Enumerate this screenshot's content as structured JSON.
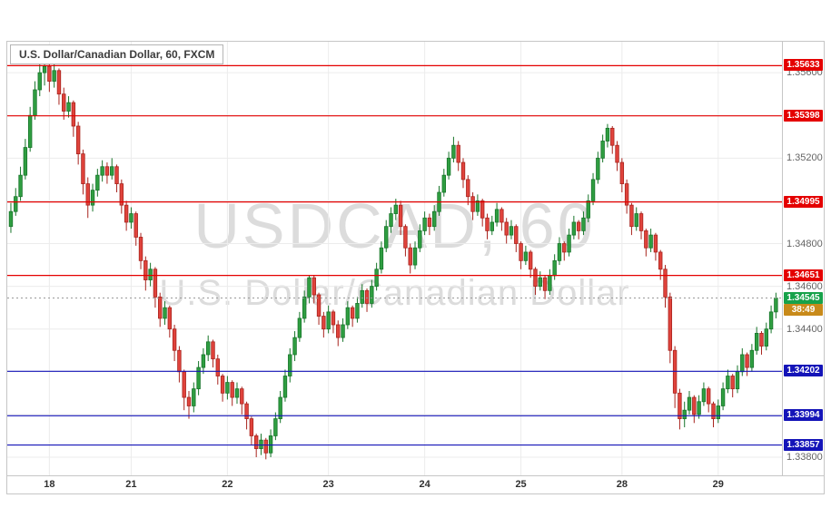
{
  "header": {
    "legend": "U.S. Dollar/Canadian Dollar, 60, FXCM"
  },
  "watermark": {
    "line1": "USDCAD, 60",
    "line2": "U.S. Dollar/Canadian Dollar"
  },
  "colors": {
    "up_fill": "#2f9e41",
    "up_border": "#17752a",
    "down_fill": "#e0433c",
    "down_border": "#a8241e",
    "resistance": "#e40000",
    "support": "#1414b8",
    "last_price": "#17a24a",
    "countdown": "#c88a1a",
    "grid": "#ececec",
    "axis_text": "#656565",
    "frame": "#c6c6c6",
    "last_price_line": "#999999"
  },
  "chart_data": {
    "type": "candlestick",
    "title": "U.S. Dollar/Canadian Dollar, 60, FXCM",
    "symbol": "USDCAD",
    "interval": "60",
    "exchange": "FXCM",
    "price_range": [
      1.33715,
      1.35745
    ],
    "grid_step": 0.002,
    "price_ticks": [
      "1.35600",
      "1.35400",
      "1.35200",
      "1.35000",
      "1.34800",
      "1.34600",
      "1.34400",
      "1.34200",
      "1.34000",
      "1.33800"
    ],
    "time_labels": [
      {
        "text": "18",
        "index": 8
      },
      {
        "text": "21",
        "index": 25
      },
      {
        "text": "22",
        "index": 45
      },
      {
        "text": "23",
        "index": 66
      },
      {
        "text": "24",
        "index": 86
      },
      {
        "text": "25",
        "index": 106
      },
      {
        "text": "28",
        "index": 127
      },
      {
        "text": "29",
        "index": 147
      }
    ],
    "resistance_levels": [
      1.35633,
      1.35398,
      1.34995,
      1.34651
    ],
    "support_levels": [
      1.34202,
      1.33994,
      1.33857
    ],
    "last_price": 1.34545,
    "last_price_label": "1.34545",
    "countdown": "38:49",
    "candles": [
      [
        1.3488,
        1.3499,
        1.3485,
        1.3495
      ],
      [
        1.3495,
        1.3506,
        1.3493,
        1.3502
      ],
      [
        1.3502,
        1.3516,
        1.35,
        1.3512
      ],
      [
        1.3512,
        1.3529,
        1.351,
        1.3525
      ],
      [
        1.3525,
        1.3544,
        1.3523,
        1.354
      ],
      [
        1.354,
        1.3556,
        1.3538,
        1.3552
      ],
      [
        1.3552,
        1.3564,
        1.3549,
        1.356
      ],
      [
        1.356,
        1.3566,
        1.3554,
        1.3563
      ],
      [
        1.3563,
        1.3565,
        1.3551,
        1.3556
      ],
      [
        1.3556,
        1.3564,
        1.3553,
        1.3561
      ],
      [
        1.3561,
        1.3562,
        1.3545,
        1.355
      ],
      [
        1.355,
        1.3553,
        1.3538,
        1.3542
      ],
      [
        1.3542,
        1.3549,
        1.3539,
        1.3546
      ],
      [
        1.3546,
        1.3547,
        1.353,
        1.3535
      ],
      [
        1.3535,
        1.3537,
        1.3517,
        1.3522
      ],
      [
        1.3522,
        1.3524,
        1.3503,
        1.3508
      ],
      [
        1.3508,
        1.3511,
        1.3492,
        1.3498
      ],
      [
        1.3498,
        1.3508,
        1.3495,
        1.3505
      ],
      [
        1.3505,
        1.3515,
        1.3502,
        1.3512
      ],
      [
        1.3512,
        1.3519,
        1.3509,
        1.3516
      ],
      [
        1.3516,
        1.3518,
        1.3508,
        1.3512
      ],
      [
        1.3512,
        1.352,
        1.351,
        1.3516
      ],
      [
        1.3516,
        1.3517,
        1.3504,
        1.3508
      ],
      [
        1.3508,
        1.351,
        1.3494,
        1.3498
      ],
      [
        1.3498,
        1.35,
        1.3486,
        1.349
      ],
      [
        1.349,
        1.3497,
        1.3487,
        1.3494
      ],
      [
        1.3494,
        1.3495,
        1.3479,
        1.3483
      ],
      [
        1.3483,
        1.3485,
        1.3468,
        1.3472
      ],
      [
        1.3472,
        1.3474,
        1.3458,
        1.3463
      ],
      [
        1.3463,
        1.3471,
        1.346,
        1.3468
      ],
      [
        1.3468,
        1.3469,
        1.345,
        1.3455
      ],
      [
        1.3455,
        1.3457,
        1.3441,
        1.3445
      ],
      [
        1.3445,
        1.3453,
        1.3442,
        1.345
      ],
      [
        1.345,
        1.3451,
        1.3436,
        1.344
      ],
      [
        1.344,
        1.3442,
        1.3425,
        1.343
      ],
      [
        1.343,
        1.3432,
        1.3415,
        1.342
      ],
      [
        1.342,
        1.3421,
        1.3402,
        1.3408
      ],
      [
        1.3408,
        1.3411,
        1.3398,
        1.3404
      ],
      [
        1.3404,
        1.3415,
        1.3401,
        1.3412
      ],
      [
        1.3412,
        1.3425,
        1.3409,
        1.3422
      ],
      [
        1.3422,
        1.3431,
        1.3419,
        1.3428
      ],
      [
        1.3428,
        1.3437,
        1.3425,
        1.3434
      ],
      [
        1.3434,
        1.3435,
        1.3422,
        1.3426
      ],
      [
        1.3426,
        1.3428,
        1.3414,
        1.3418
      ],
      [
        1.3418,
        1.3419,
        1.3406,
        1.341
      ],
      [
        1.341,
        1.3418,
        1.3407,
        1.3415
      ],
      [
        1.3415,
        1.3416,
        1.3404,
        1.3408
      ],
      [
        1.3408,
        1.3415,
        1.3405,
        1.3412
      ],
      [
        1.3412,
        1.3413,
        1.34,
        1.3405
      ],
      [
        1.3405,
        1.3406,
        1.3393,
        1.3398
      ],
      [
        1.3398,
        1.3399,
        1.3386,
        1.339
      ],
      [
        1.339,
        1.3391,
        1.338,
        1.3384
      ],
      [
        1.3384,
        1.3391,
        1.3381,
        1.3388
      ],
      [
        1.3388,
        1.3389,
        1.3379,
        1.3382
      ],
      [
        1.3382,
        1.3393,
        1.338,
        1.339
      ],
      [
        1.339,
        1.3401,
        1.3388,
        1.3398
      ],
      [
        1.3398,
        1.3411,
        1.3396,
        1.3408
      ],
      [
        1.3408,
        1.3421,
        1.3406,
        1.3418
      ],
      [
        1.3418,
        1.3431,
        1.3415,
        1.3428
      ],
      [
        1.3428,
        1.3439,
        1.3425,
        1.3436
      ],
      [
        1.3436,
        1.3448,
        1.3434,
        1.3445
      ],
      [
        1.3445,
        1.3458,
        1.3443,
        1.3455
      ],
      [
        1.3455,
        1.3465,
        1.3452,
        1.3464
      ],
      [
        1.3464,
        1.3465,
        1.3452,
        1.3456
      ],
      [
        1.3456,
        1.3457,
        1.3442,
        1.3446
      ],
      [
        1.3446,
        1.3448,
        1.3436,
        1.344
      ],
      [
        1.344,
        1.3451,
        1.3438,
        1.3448
      ],
      [
        1.3448,
        1.3449,
        1.3438,
        1.3442
      ],
      [
        1.3442,
        1.3444,
        1.3432,
        1.3436
      ],
      [
        1.3436,
        1.3445,
        1.3434,
        1.3442
      ],
      [
        1.3442,
        1.3453,
        1.344,
        1.345
      ],
      [
        1.345,
        1.3451,
        1.3441,
        1.3445
      ],
      [
        1.3445,
        1.3455,
        1.3443,
        1.3452
      ],
      [
        1.3452,
        1.3461,
        1.345,
        1.3458
      ],
      [
        1.3458,
        1.3459,
        1.3448,
        1.3452
      ],
      [
        1.3452,
        1.3463,
        1.345,
        1.346
      ],
      [
        1.346,
        1.3471,
        1.3458,
        1.3468
      ],
      [
        1.3468,
        1.3481,
        1.3466,
        1.3478
      ],
      [
        1.3478,
        1.3491,
        1.3476,
        1.3488
      ],
      [
        1.3488,
        1.3497,
        1.3485,
        1.3494
      ],
      [
        1.3494,
        1.3501,
        1.3491,
        1.3498
      ],
      [
        1.3498,
        1.35,
        1.3484,
        1.3488
      ],
      [
        1.3488,
        1.3489,
        1.3474,
        1.3478
      ],
      [
        1.3478,
        1.348,
        1.3466,
        1.347
      ],
      [
        1.347,
        1.3481,
        1.3468,
        1.3478
      ],
      [
        1.3478,
        1.3489,
        1.3476,
        1.3486
      ],
      [
        1.3486,
        1.3495,
        1.3484,
        1.3492
      ],
      [
        1.3492,
        1.3494,
        1.3484,
        1.3488
      ],
      [
        1.3488,
        1.3498,
        1.3486,
        1.3495
      ],
      [
        1.3495,
        1.3507,
        1.3493,
        1.3504
      ],
      [
        1.3504,
        1.3515,
        1.3502,
        1.3512
      ],
      [
        1.3512,
        1.3523,
        1.351,
        1.352
      ],
      [
        1.352,
        1.353,
        1.3518,
        1.3526
      ],
      [
        1.3526,
        1.3528,
        1.3514,
        1.3518
      ],
      [
        1.3518,
        1.352,
        1.3506,
        1.351
      ],
      [
        1.351,
        1.3512,
        1.3498,
        1.3502
      ],
      [
        1.3502,
        1.3504,
        1.3491,
        1.3495
      ],
      [
        1.3495,
        1.3503,
        1.3493,
        1.35
      ],
      [
        1.35,
        1.3501,
        1.3488,
        1.3492
      ],
      [
        1.3492,
        1.3494,
        1.3482,
        1.3486
      ],
      [
        1.3486,
        1.3493,
        1.3484,
        1.349
      ],
      [
        1.349,
        1.3499,
        1.3488,
        1.3496
      ],
      [
        1.3496,
        1.3497,
        1.3486,
        1.349
      ],
      [
        1.349,
        1.3492,
        1.348,
        1.3484
      ],
      [
        1.3484,
        1.3491,
        1.3482,
        1.3488
      ],
      [
        1.3488,
        1.3489,
        1.3476,
        1.348
      ],
      [
        1.348,
        1.3481,
        1.3468,
        1.3472
      ],
      [
        1.3472,
        1.3479,
        1.347,
        1.3476
      ],
      [
        1.3476,
        1.3477,
        1.3464,
        1.3468
      ],
      [
        1.3468,
        1.3469,
        1.3456,
        1.346
      ],
      [
        1.346,
        1.3467,
        1.3458,
        1.3464
      ],
      [
        1.3464,
        1.3465,
        1.3454,
        1.3458
      ],
      [
        1.3458,
        1.3468,
        1.3456,
        1.3465
      ],
      [
        1.3465,
        1.3475,
        1.3463,
        1.3472
      ],
      [
        1.3472,
        1.3483,
        1.347,
        1.348
      ],
      [
        1.348,
        1.3481,
        1.3472,
        1.3476
      ],
      [
        1.3476,
        1.3487,
        1.3474,
        1.3484
      ],
      [
        1.3484,
        1.3493,
        1.3482,
        1.349
      ],
      [
        1.349,
        1.3491,
        1.3482,
        1.3486
      ],
      [
        1.3486,
        1.3495,
        1.3484,
        1.3492
      ],
      [
        1.3492,
        1.3503,
        1.349,
        1.35
      ],
      [
        1.35,
        1.3513,
        1.3498,
        1.351
      ],
      [
        1.351,
        1.3523,
        1.3508,
        1.352
      ],
      [
        1.352,
        1.3531,
        1.3518,
        1.3528
      ],
      [
        1.3528,
        1.3536,
        1.3525,
        1.3534
      ],
      [
        1.3534,
        1.3535,
        1.3522,
        1.3526
      ],
      [
        1.3526,
        1.3528,
        1.3514,
        1.3518
      ],
      [
        1.3518,
        1.352,
        1.3504,
        1.3508
      ],
      [
        1.3508,
        1.351,
        1.3494,
        1.3498
      ],
      [
        1.3498,
        1.3499,
        1.3484,
        1.3488
      ],
      [
        1.3488,
        1.3497,
        1.3486,
        1.3494
      ],
      [
        1.3494,
        1.3495,
        1.3482,
        1.3486
      ],
      [
        1.3486,
        1.3487,
        1.3474,
        1.3478
      ],
      [
        1.3478,
        1.3487,
        1.3476,
        1.3484
      ],
      [
        1.3484,
        1.3485,
        1.3472,
        1.3476
      ],
      [
        1.3476,
        1.3477,
        1.3463,
        1.3468
      ],
      [
        1.3468,
        1.347,
        1.345,
        1.3455
      ],
      [
        1.3455,
        1.3457,
        1.3424,
        1.343
      ],
      [
        1.343,
        1.3432,
        1.3403,
        1.341
      ],
      [
        1.341,
        1.3412,
        1.3393,
        1.3398
      ],
      [
        1.3398,
        1.3406,
        1.3394,
        1.3402
      ],
      [
        1.3402,
        1.3411,
        1.34,
        1.3408
      ],
      [
        1.3408,
        1.3409,
        1.3396,
        1.34
      ],
      [
        1.34,
        1.3409,
        1.3398,
        1.3406
      ],
      [
        1.3406,
        1.3415,
        1.3404,
        1.3412
      ],
      [
        1.3412,
        1.3413,
        1.3401,
        1.3405
      ],
      [
        1.3405,
        1.3406,
        1.3394,
        1.3398
      ],
      [
        1.3398,
        1.3407,
        1.3396,
        1.3404
      ],
      [
        1.3404,
        1.3415,
        1.3402,
        1.3412
      ],
      [
        1.3412,
        1.3421,
        1.341,
        1.3418
      ],
      [
        1.3418,
        1.3419,
        1.3408,
        1.3412
      ],
      [
        1.3412,
        1.3423,
        1.341,
        1.342
      ],
      [
        1.342,
        1.3431,
        1.3418,
        1.3428
      ],
      [
        1.3428,
        1.3429,
        1.3418,
        1.3422
      ],
      [
        1.3422,
        1.3433,
        1.342,
        1.343
      ],
      [
        1.343,
        1.3441,
        1.3428,
        1.3438
      ],
      [
        1.3438,
        1.3439,
        1.3428,
        1.3432
      ],
      [
        1.3432,
        1.3443,
        1.343,
        1.344
      ],
      [
        1.344,
        1.3451,
        1.3438,
        1.3448
      ],
      [
        1.3448,
        1.3457,
        1.3445,
        1.34545
      ]
    ]
  }
}
